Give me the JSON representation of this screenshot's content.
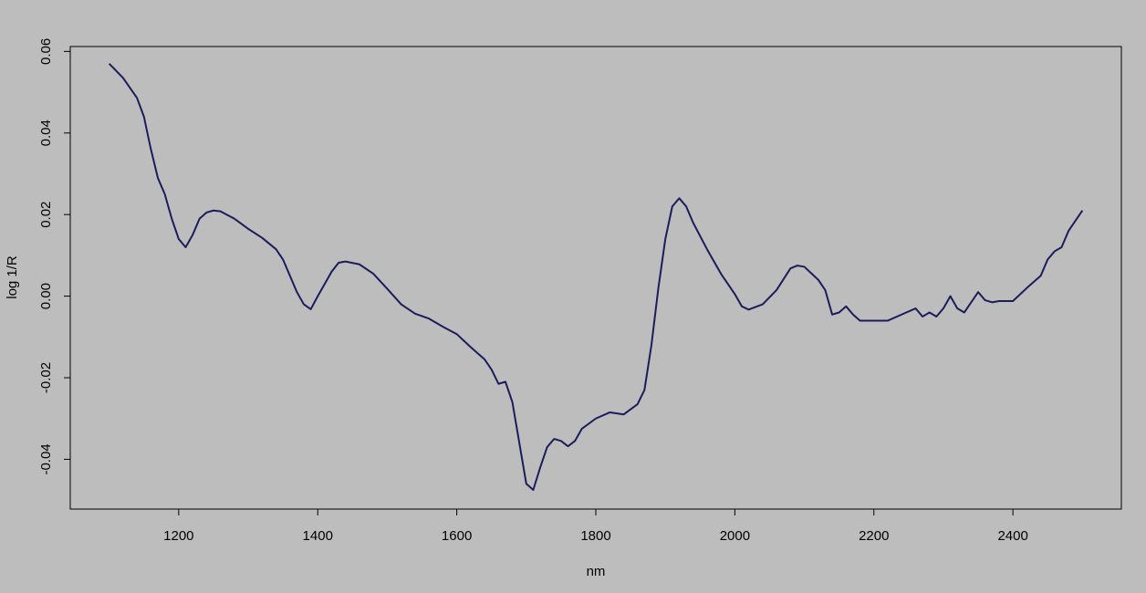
{
  "chart_data": {
    "type": "line",
    "x_label": "nm",
    "y_label": "log 1/R",
    "color": "#1c1c5c",
    "grid": false,
    "x": [
      1100,
      1120,
      1140,
      1150,
      1160,
      1170,
      1180,
      1190,
      1200,
      1210,
      1220,
      1230,
      1240,
      1250,
      1260,
      1280,
      1300,
      1320,
      1340,
      1350,
      1360,
      1370,
      1380,
      1390,
      1400,
      1410,
      1420,
      1430,
      1440,
      1460,
      1480,
      1500,
      1520,
      1540,
      1560,
      1580,
      1600,
      1620,
      1640,
      1650,
      1660,
      1670,
      1680,
      1690,
      1700,
      1710,
      1720,
      1730,
      1740,
      1750,
      1760,
      1770,
      1780,
      1800,
      1820,
      1840,
      1860,
      1870,
      1880,
      1890,
      1900,
      1910,
      1920,
      1930,
      1940,
      1960,
      1980,
      2000,
      2010,
      2020,
      2040,
      2060,
      2080,
      2090,
      2100,
      2120,
      2130,
      2140,
      2150,
      2160,
      2170,
      2180,
      2200,
      2220,
      2240,
      2260,
      2270,
      2280,
      2290,
      2300,
      2310,
      2320,
      2330,
      2340,
      2350,
      2360,
      2370,
      2380,
      2400,
      2420,
      2440,
      2450,
      2460,
      2470,
      2480,
      2500
    ],
    "values": [
      0.057,
      0.0535,
      0.0486,
      0.044,
      0.036,
      0.029,
      0.025,
      0.019,
      0.014,
      0.012,
      0.015,
      0.019,
      0.0205,
      0.021,
      0.0208,
      0.019,
      0.0165,
      0.0143,
      0.0115,
      0.009,
      0.005,
      0.001,
      -0.002,
      -0.0032,
      0.0,
      0.003,
      0.006,
      0.0082,
      0.0085,
      0.0078,
      0.0055,
      0.0018,
      -0.002,
      -0.0043,
      -0.0055,
      -0.0075,
      -0.0093,
      -0.0125,
      -0.0155,
      -0.018,
      -0.0215,
      -0.021,
      -0.026,
      -0.036,
      -0.046,
      -0.0475,
      -0.042,
      -0.037,
      -0.035,
      -0.0355,
      -0.0368,
      -0.0355,
      -0.0325,
      -0.03,
      -0.0285,
      -0.029,
      -0.0265,
      -0.023,
      -0.012,
      0.002,
      0.014,
      0.022,
      0.024,
      0.022,
      0.018,
      0.0115,
      0.0055,
      0.0005,
      -0.0025,
      -0.0033,
      -0.002,
      0.0015,
      0.0068,
      0.0075,
      0.0072,
      0.004,
      0.0015,
      -0.0045,
      -0.004,
      -0.0025,
      -0.0045,
      -0.006,
      -0.006,
      -0.006,
      -0.0045,
      -0.003,
      -0.005,
      -0.004,
      -0.005,
      -0.003,
      0.0,
      -0.003,
      -0.004,
      -0.0015,
      0.001,
      -0.001,
      -0.0015,
      -0.0012,
      -0.0012,
      0.002,
      0.005,
      0.009,
      0.011,
      0.012,
      0.016,
      0.021
    ],
    "xlim": [
      1044,
      2556
    ],
    "xticks": [
      1200,
      1400,
      1600,
      1800,
      2000,
      2200,
      2400
    ],
    "ylim": [
      -0.0522,
      0.0612
    ],
    "yticks": [
      -0.04,
      -0.02,
      {
        "value": 0,
        "label": "0.00"
      },
      0.02,
      0.04,
      0.06
    ]
  }
}
